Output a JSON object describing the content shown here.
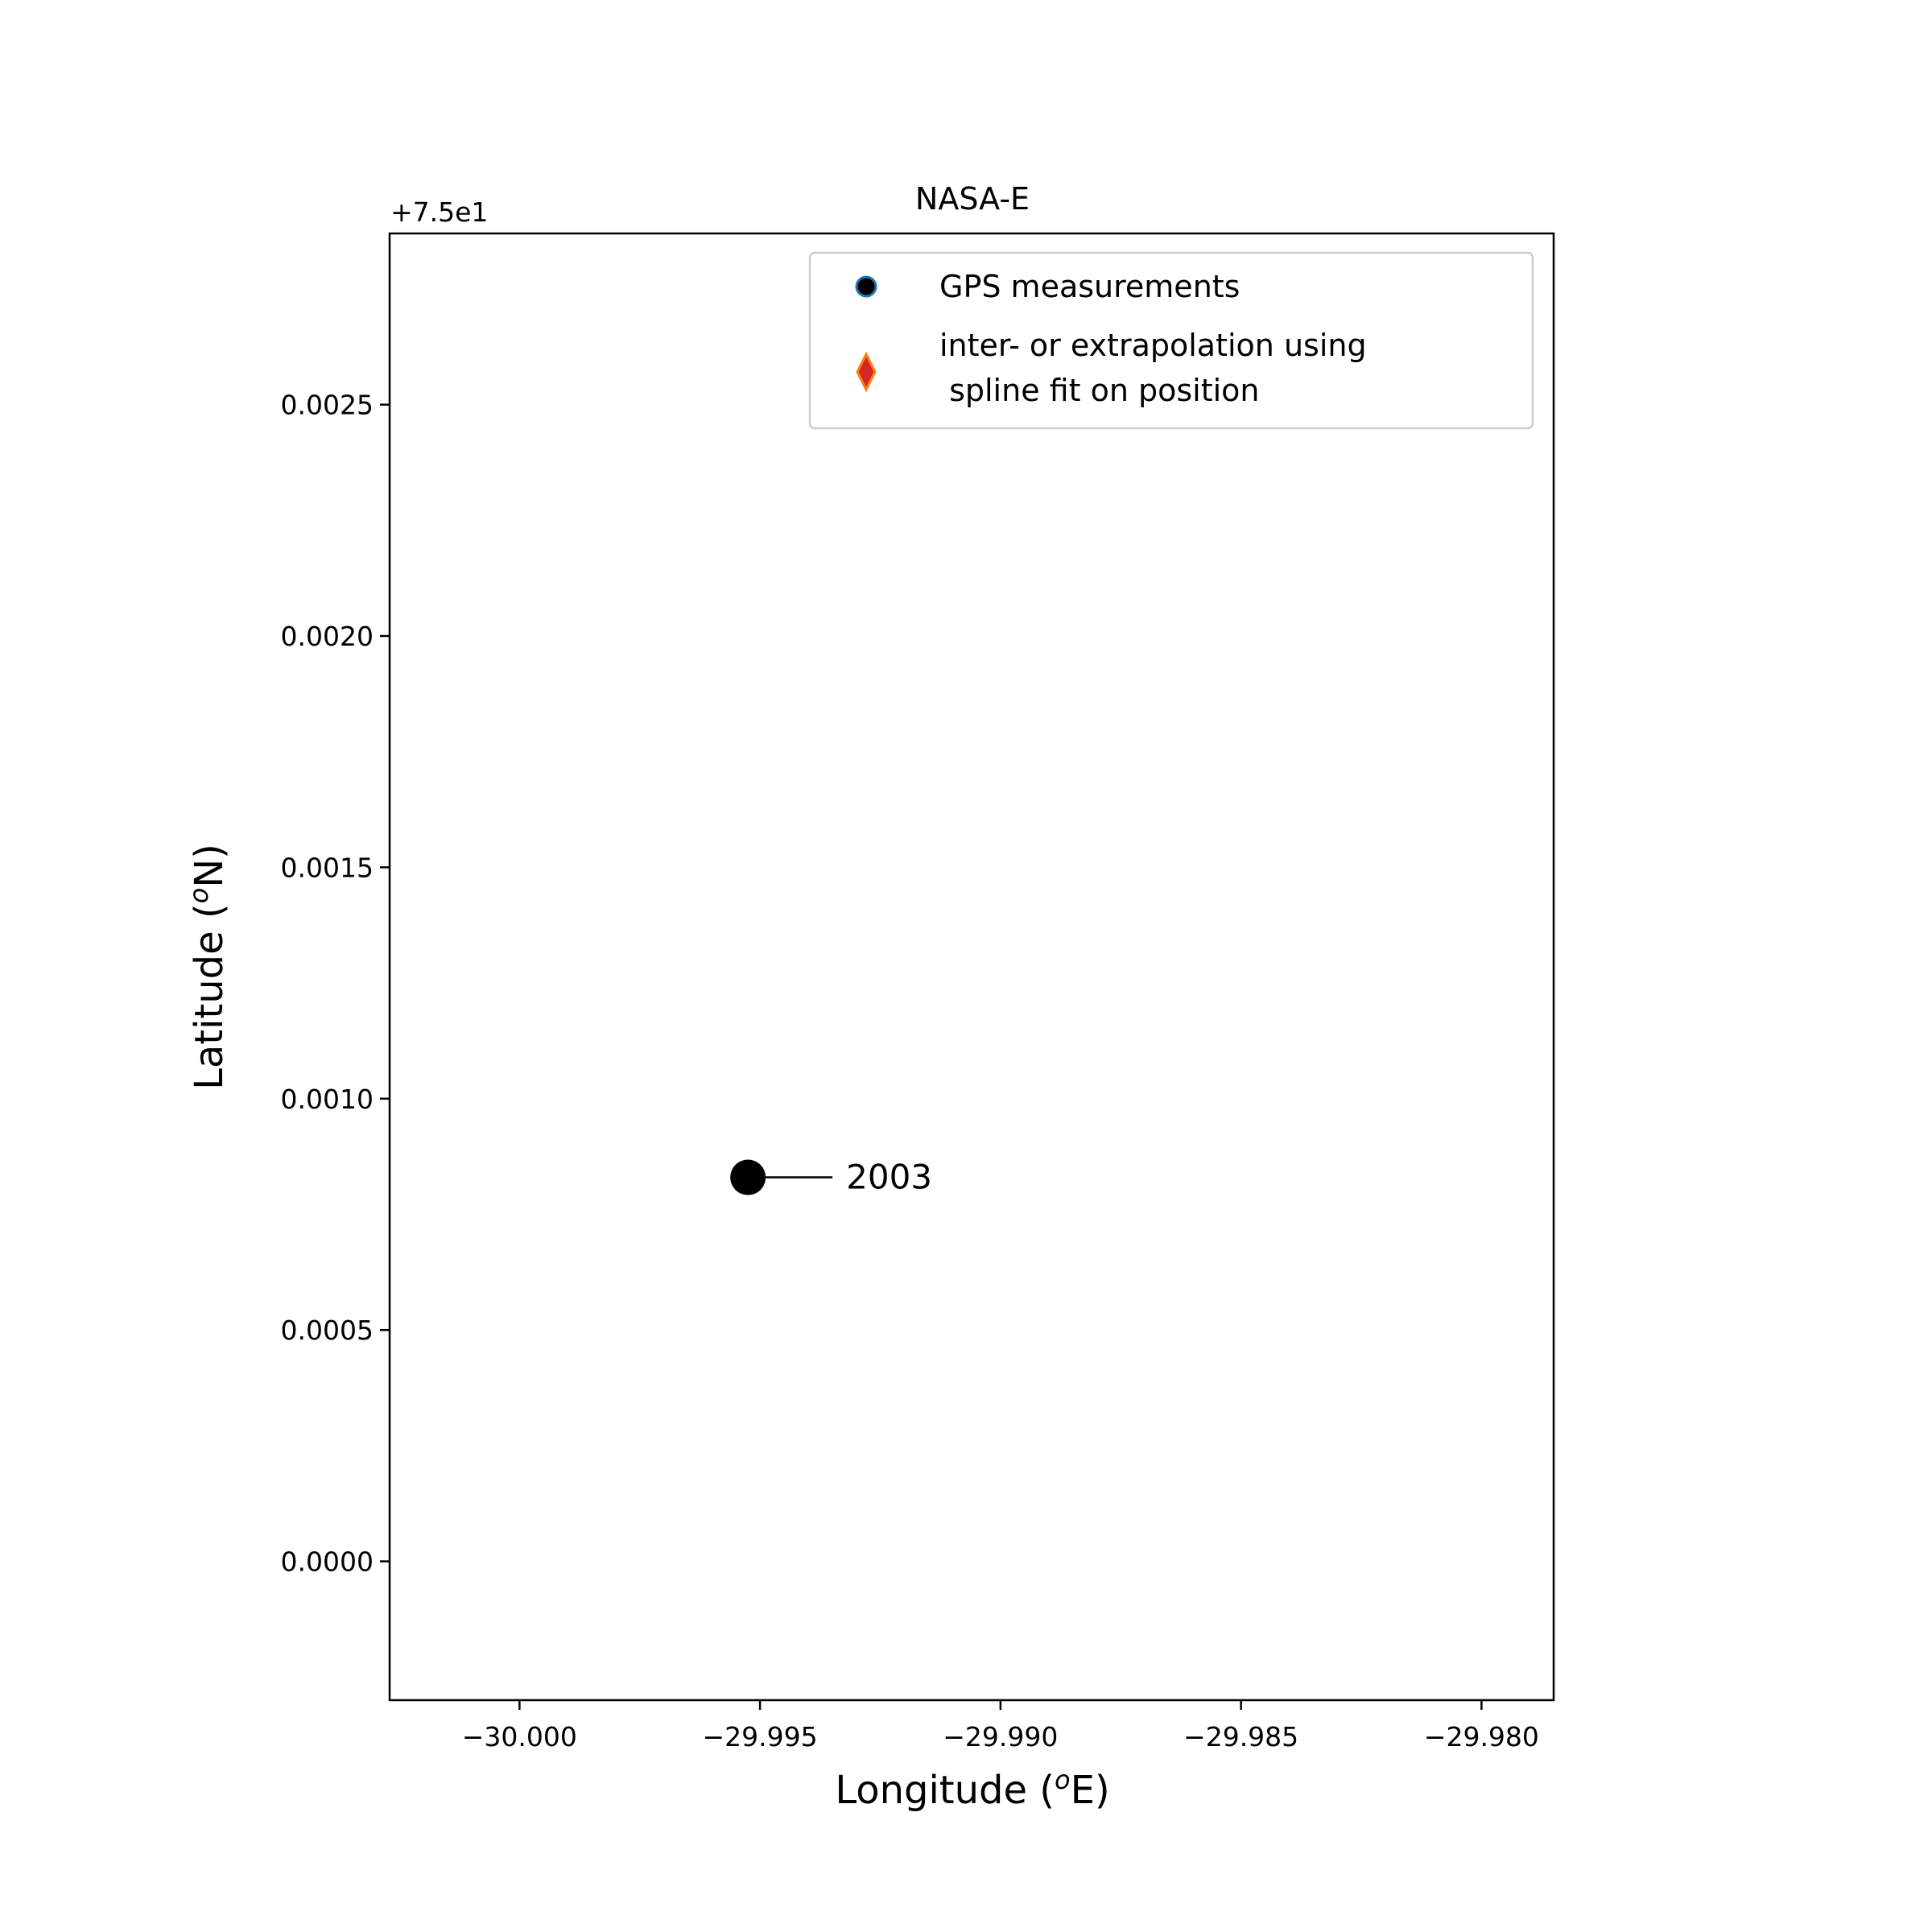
{
  "chart_data": {
    "type": "scatter",
    "title": "NASA-E",
    "xlabel_prefix": "Longitude (",
    "xlabel_sup": "o",
    "xlabel_suffix": "E)",
    "ylabel_prefix": "Latitude (",
    "ylabel_sup": "o",
    "ylabel_suffix": "N)",
    "y_offset_label": "+7.5e1",
    "y_offset": 75,
    "xlim": [
      -30.0027,
      -29.9785
    ],
    "ylim": [
      -0.0003,
      0.00287
    ],
    "xticks": [
      {
        "value": -30.0,
        "label": "−30.000"
      },
      {
        "value": -29.995,
        "label": "−29.995"
      },
      {
        "value": -29.99,
        "label": "−29.990"
      },
      {
        "value": -29.985,
        "label": "−29.985"
      },
      {
        "value": -29.98,
        "label": "−29.980"
      }
    ],
    "yticks": [
      {
        "value": 0.0,
        "label": "0.0000"
      },
      {
        "value": 0.0005,
        "label": "0.0005"
      },
      {
        "value": 0.001,
        "label": "0.0010"
      },
      {
        "value": 0.0015,
        "label": "0.0015"
      },
      {
        "value": 0.002,
        "label": "0.0020"
      },
      {
        "value": 0.0025,
        "label": "0.0025"
      }
    ],
    "grid": false,
    "legend": {
      "placement": "upper-right",
      "entries": [
        {
          "label_lines": [
            "GPS measurements"
          ],
          "marker": "circle",
          "fill": "#000000",
          "edge": "#1f77b4"
        },
        {
          "label_lines": [
            "inter- or extrapolation using",
            " spline fit on position"
          ],
          "marker": "diamond",
          "fill": "#d62728",
          "edge": "#ff7f0e"
        }
      ]
    },
    "series": [
      {
        "marker": "circle",
        "color": "#000000",
        "points": [
          {
            "x": -29.99525,
            "y": 0.00083,
            "label": "2003"
          }
        ]
      }
    ]
  }
}
